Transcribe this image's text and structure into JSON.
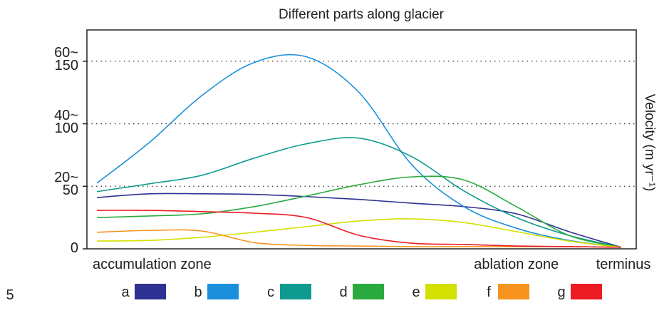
{
  "chart_data": {
    "type": "line",
    "title": "Different parts along glacier",
    "y2_label": "Velocity (m yr⁻¹)",
    "figure_number": "5",
    "x": [
      0,
      10,
      20,
      30,
      40,
      50,
      60,
      70,
      80,
      90,
      100
    ],
    "xlim": [
      0,
      100
    ],
    "xticks": [
      {
        "value": 0,
        "label": "accumulation zone"
      },
      {
        "value": 80,
        "label": "ablation zone"
      },
      {
        "value": 100,
        "label": "terminus"
      }
    ],
    "ylim": [
      0,
      70
    ],
    "yticks": [
      0,
      {
        "value": 20,
        "label": "20~\n50"
      },
      {
        "value": 40,
        "label": "40~\n100"
      },
      {
        "value": 60,
        "label": "60~\n150"
      }
    ],
    "grid": true,
    "legend": "bottom",
    "series": [
      {
        "name": "a",
        "color": "#2e3192",
        "values": [
          16.4,
          17.6,
          17.6,
          17.4,
          16.7,
          15.8,
          14.6,
          13.5,
          11.2,
          5.5,
          0.5
        ]
      },
      {
        "name": "b",
        "color": "#1b8fdc",
        "values": [
          21,
          34,
          49,
          59.6,
          61.4,
          50,
          27,
          13.5,
          6.6,
          2.7,
          0.5
        ]
      },
      {
        "name": "c",
        "color": "#0e9a8f",
        "values": [
          18.3,
          20.8,
          23.5,
          29,
          33.6,
          35.4,
          29.5,
          18.5,
          10,
          4.3,
          0.5
        ]
      },
      {
        "name": "d",
        "color": "#2aaa3e",
        "values": [
          10,
          10.5,
          11.2,
          13.5,
          16.9,
          20.5,
          23,
          22,
          13.5,
          4.3,
          0.5
        ]
      },
      {
        "name": "e",
        "color": "#d4e000",
        "values": [
          2.5,
          2.7,
          3.7,
          5.3,
          7.1,
          8.9,
          9.6,
          8.4,
          5.5,
          2.5,
          0.5
        ]
      },
      {
        "name": "f",
        "color": "#f7941d",
        "values": [
          5.3,
          5.9,
          5.7,
          2,
          1.1,
          0.9,
          0.7,
          0.7,
          0.7,
          0.7,
          0.5
        ]
      },
      {
        "name": "g",
        "color": "#ed1c24",
        "values": [
          12.3,
          12.3,
          11.9,
          11.4,
          10,
          4.3,
          1.8,
          1.4,
          0.9,
          0.7,
          0.5
        ]
      }
    ]
  }
}
